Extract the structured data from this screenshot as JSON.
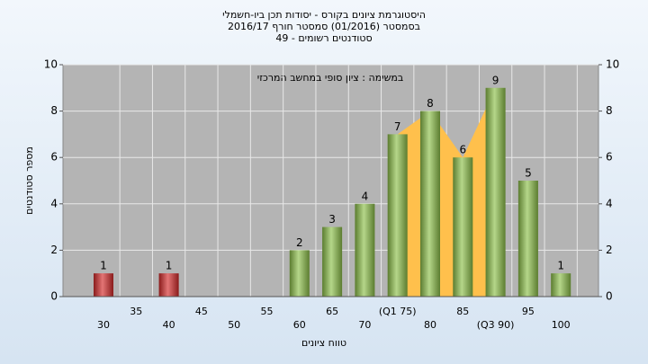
{
  "chart_data": {
    "type": "bar",
    "title": "היסטוגרמת ציונים בקורס - יסודות תכן ביו-חשמלי",
    "subtitle": "בסמסטר (01/2016) סמסטר חורף 2016/17",
    "subtitle2": "סטודנטים רשומים - 49",
    "annotation": "במשימה : ציון סופי במחשב המרכזי",
    "x_label": "טווח ציונים",
    "y_label": "מספר סטודנטים",
    "categories": [
      "30",
      "35",
      "40",
      "45",
      "50",
      "55",
      "60",
      "65",
      "70",
      "(Q1 75)",
      "80",
      "85",
      "(Q3 90)",
      "95",
      "100"
    ],
    "values": [
      1,
      0,
      1,
      0,
      0,
      0,
      2,
      3,
      4,
      7,
      8,
      6,
      9,
      5,
      1
    ],
    "colors": [
      "#d42a2a",
      "#d42a2a",
      "#d42a2a",
      "#d42a2a",
      "#d42a2a",
      "#d42a2a",
      "#8dc04a",
      "#8dc04a",
      "#8dc04a",
      "#8dc04a",
      "#8dc04a",
      "#8dc04a",
      "#8dc04a",
      "#8dc04a",
      "#8dc04a"
    ],
    "iqr_color": "#ffc04c",
    "ylim": [
      0,
      10
    ],
    "yticks": [
      0,
      2,
      4,
      6,
      8,
      10
    ],
    "y2lim": [
      0,
      10
    ],
    "y2ticks": [
      0,
      2,
      4,
      6,
      8,
      10
    ],
    "grid": true
  }
}
